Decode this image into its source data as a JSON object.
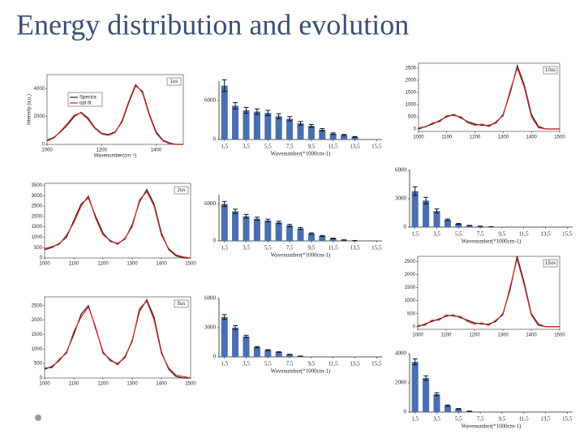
{
  "title": "Energy distribution and evolution",
  "chart_data": [
    {
      "type": "line",
      "tag": "1us",
      "ylabel": "Intensity (a.u.)",
      "xlabel": "Wavenumber(cm⁻¹)",
      "x": [
        1000,
        1025,
        1050,
        1075,
        1100,
        1125,
        1150,
        1175,
        1200,
        1225,
        1250,
        1275,
        1300,
        1325,
        1350,
        1375,
        1400,
        1425,
        1450,
        1475,
        1500
      ],
      "xlim": [
        1000,
        1500
      ],
      "ylim": [
        0,
        5000
      ],
      "xticks": [
        1000,
        1200,
        1400
      ],
      "yticks": [
        0,
        2000,
        4000
      ],
      "series": [
        {
          "name": "Spectra",
          "color": "#222222",
          "values": [
            300,
            500,
            900,
            1400,
            2000,
            2300,
            1900,
            1200,
            800,
            700,
            900,
            1600,
            3000,
            4200,
            3800,
            2200,
            900,
            300,
            100,
            0,
            0
          ]
        },
        {
          "name": "opt fit",
          "color": "#d42a2a",
          "values": [
            250,
            450,
            950,
            1500,
            2100,
            2250,
            1800,
            1150,
            750,
            650,
            850,
            1700,
            3100,
            4300,
            3700,
            2100,
            800,
            250,
            50,
            0,
            0
          ]
        }
      ]
    },
    {
      "type": "line",
      "tag": "10us",
      "x": [
        1000,
        1025,
        1050,
        1075,
        1100,
        1125,
        1150,
        1175,
        1200,
        1225,
        1250,
        1275,
        1300,
        1325,
        1350,
        1375,
        1400,
        1425,
        1450,
        1475,
        1500
      ],
      "xlim": [
        1000,
        1500
      ],
      "ylim": [
        -100,
        2700
      ],
      "xticks": [
        1000,
        1100,
        1200,
        1300,
        1400,
        1500
      ],
      "yticks": [
        0,
        500,
        1000,
        1500,
        2000,
        2500
      ],
      "series": [
        {
          "name": "Spectra",
          "color": "#222222",
          "values": [
            0,
            100,
            200,
            350,
            500,
            600,
            450,
            300,
            200,
            150,
            150,
            250,
            600,
            1500,
            2600,
            1800,
            600,
            100,
            0,
            0,
            0
          ]
        },
        {
          "name": "opt fit",
          "color": "#d42a2a",
          "values": [
            50,
            80,
            250,
            300,
            550,
            550,
            500,
            250,
            150,
            200,
            100,
            300,
            550,
            1600,
            2500,
            1700,
            500,
            50,
            0,
            0,
            0
          ]
        }
      ]
    },
    {
      "type": "line",
      "tag": "2us",
      "x": [
        1000,
        1025,
        1050,
        1075,
        1100,
        1125,
        1150,
        1175,
        1200,
        1225,
        1250,
        1275,
        1300,
        1325,
        1350,
        1375,
        1400,
        1425,
        1450,
        1475,
        1500
      ],
      "xlim": [
        1000,
        1500
      ],
      "ylim": [
        0,
        3600
      ],
      "xticks": [
        1000,
        1100,
        1200,
        1300,
        1400,
        1500
      ],
      "yticks": [
        0,
        500,
        1000,
        1500,
        2000,
        2500,
        3000,
        3500
      ],
      "series": [
        {
          "name": "Spectra",
          "color": "#222222",
          "values": [
            400,
            500,
            700,
            1000,
            1800,
            2600,
            2900,
            2000,
            1200,
            800,
            700,
            900,
            1600,
            2700,
            3300,
            2600,
            1200,
            400,
            100,
            0,
            0
          ]
        },
        {
          "name": "opt fit",
          "color": "#d42a2a",
          "values": [
            450,
            550,
            650,
            1100,
            1700,
            2500,
            3000,
            1900,
            1100,
            850,
            650,
            950,
            1500,
            2800,
            3200,
            2500,
            1100,
            450,
            150,
            50,
            0
          ]
        }
      ]
    },
    {
      "type": "line",
      "tag": "5us",
      "x": [
        1000,
        1025,
        1050,
        1075,
        1100,
        1125,
        1150,
        1175,
        1200,
        1225,
        1250,
        1275,
        1300,
        1325,
        1350,
        1375,
        1400,
        1425,
        1450,
        1475,
        1500
      ],
      "xlim": [
        1000,
        1500
      ],
      "ylim": [
        0,
        2800
      ],
      "xticks": [
        1000,
        1100,
        1200,
        1300,
        1400,
        1500
      ],
      "yticks": [
        0,
        500,
        1000,
        1500,
        2000,
        2500
      ],
      "series": [
        {
          "name": "Spectra",
          "color": "#222222",
          "values": [
            300,
            400,
            600,
            900,
            1500,
            2200,
            2500,
            1700,
            900,
            600,
            500,
            700,
            1300,
            2300,
            2700,
            2100,
            900,
            300,
            50,
            0,
            0
          ]
        },
        {
          "name": "opt fit",
          "color": "#d42a2a",
          "values": [
            350,
            350,
            650,
            850,
            1600,
            2100,
            2450,
            1750,
            850,
            650,
            450,
            750,
            1250,
            2400,
            2650,
            2000,
            850,
            350,
            100,
            50,
            0
          ]
        }
      ]
    },
    {
      "type": "line",
      "tag": "15us",
      "x": [
        1000,
        1025,
        1050,
        1075,
        1100,
        1125,
        1150,
        1175,
        1200,
        1225,
        1250,
        1275,
        1300,
        1325,
        1350,
        1375,
        1400,
        1425,
        1450,
        1475,
        1500
      ],
      "xlim": [
        1000,
        1500
      ],
      "ylim": [
        -100,
        2700
      ],
      "xticks": [
        1000,
        1100,
        1200,
        1300,
        1400,
        1500
      ],
      "yticks": [
        0,
        500,
        1000,
        1500,
        2000,
        2500
      ],
      "series": [
        {
          "name": "Spectra",
          "color": "#222222",
          "values": [
            0,
            100,
            200,
            300,
            400,
            450,
            350,
            250,
            150,
            100,
            100,
            200,
            500,
            1400,
            2700,
            1700,
            500,
            100,
            0,
            0,
            0
          ]
        },
        {
          "name": "opt fit",
          "color": "#d42a2a",
          "values": [
            50,
            50,
            250,
            250,
            450,
            400,
            400,
            200,
            100,
            150,
            50,
            250,
            450,
            1500,
            2600,
            1600,
            450,
            50,
            0,
            0,
            0
          ]
        }
      ]
    },
    {
      "type": "bar",
      "xlabel": "Wavenumber(*1000cm-1)",
      "color": "#4a6fb0",
      "x": [
        1.5,
        2.5,
        3.5,
        4.5,
        5.5,
        6.5,
        7.5,
        8.5,
        9.5,
        10.5,
        11.5,
        12.5,
        13.5
      ],
      "values": [
        8300,
        5200,
        4500,
        4300,
        4100,
        3600,
        3200,
        2500,
        2100,
        1500,
        900,
        700,
        400
      ],
      "errors": [
        900,
        500,
        450,
        420,
        400,
        380,
        330,
        280,
        230,
        180,
        120,
        90,
        60
      ],
      "xlim": [
        1,
        16
      ],
      "ylim": [
        0,
        9000
      ],
      "yticks": [
        0,
        6000
      ],
      "xticks": [
        {
          "value": 1.5,
          "label": "1,5"
        },
        {
          "value": 3.5,
          "label": "3,5"
        },
        {
          "value": 5.5,
          "label": "5,5"
        },
        {
          "value": 7.5,
          "label": "7,5"
        },
        {
          "value": 9.5,
          "label": "9,5"
        },
        {
          "value": 11.5,
          "label": "11,5"
        },
        {
          "value": 13.5,
          "label": "13,5"
        },
        {
          "value": 15.5,
          "label": "15,5"
        }
      ]
    },
    {
      "type": "bar",
      "xlabel": "Wavenumber(*1000cm-1)",
      "color": "#4a6fb0",
      "x": [
        1.5,
        2.5,
        3.5,
        4.5,
        5.5,
        6.5,
        7.5,
        8.5,
        9.5,
        10.5,
        11.5,
        12.5,
        13.5
      ],
      "values": [
        6000,
        4800,
        4000,
        3600,
        3300,
        3000,
        2500,
        2000,
        1200,
        800,
        400,
        150,
        50
      ],
      "errors": [
        400,
        350,
        300,
        250,
        230,
        200,
        180,
        150,
        100,
        80,
        50,
        30,
        20
      ],
      "xlim": [
        1,
        16
      ],
      "ylim": [
        0,
        7500
      ],
      "yticks": [
        0,
        6000
      ],
      "xticks": [
        {
          "value": 1.5,
          "label": "1,5"
        },
        {
          "value": 3.5,
          "label": "3,5"
        },
        {
          "value": 5.5,
          "label": "5,5"
        },
        {
          "value": 7.5,
          "label": "7,5"
        },
        {
          "value": 9.5,
          "label": "9,5"
        },
        {
          "value": 11.5,
          "label": "11,5"
        },
        {
          "value": 13.5,
          "label": "13,5"
        },
        {
          "value": 15.5,
          "label": "15,5"
        }
      ]
    },
    {
      "type": "bar",
      "xlabel": "Wavenumber(*1000cm-1)",
      "color": "#4a6fb0",
      "x": [
        1.5,
        2.5,
        3.5,
        4.5,
        5.5,
        6.5,
        7.5,
        8.5
      ],
      "values": [
        3800,
        2800,
        1700,
        780,
        340,
        170,
        90,
        40
      ],
      "errors": [
        450,
        350,
        220,
        80,
        40,
        20,
        10,
        5
      ],
      "xlim": [
        1,
        16
      ],
      "ylim": [
        0,
        6000
      ],
      "yticks": [
        0,
        3000,
        6000
      ],
      "xticks": [
        {
          "value": 1.5,
          "label": "1,5"
        },
        {
          "value": 3.5,
          "label": "3,5"
        },
        {
          "value": 5.5,
          "label": "5,5"
        },
        {
          "value": 7.5,
          "label": "7,5"
        },
        {
          "value": 9.5,
          "label": "9,5"
        },
        {
          "value": 11.5,
          "label": "11,5"
        },
        {
          "value": 13.5,
          "label": "13,5"
        },
        {
          "value": 15.5,
          "label": "15,5"
        }
      ]
    },
    {
      "type": "bar",
      "xlabel": "Wavenumber(*1000cm-1)",
      "color": "#4a6fb0",
      "x": [
        1.5,
        2.5,
        3.5,
        4.5,
        5.5,
        6.5,
        7.5,
        8.5
      ],
      "values": [
        4100,
        3000,
        2100,
        1000,
        700,
        500,
        250,
        80
      ],
      "errors": [
        250,
        200,
        120,
        60,
        40,
        30,
        20,
        10
      ],
      "xlim": [
        1,
        16
      ],
      "ylim": [
        0,
        6000
      ],
      "yticks": [
        0,
        3000,
        6000
      ],
      "xticks": [
        {
          "value": 1.5,
          "label": "1,5"
        },
        {
          "value": 3.5,
          "label": "3,5"
        },
        {
          "value": 5.5,
          "label": "5,5"
        },
        {
          "value": 7.5,
          "label": "7,5"
        },
        {
          "value": 9.5,
          "label": "9,5"
        },
        {
          "value": 11.5,
          "label": "11,5"
        },
        {
          "value": 13.5,
          "label": "13,5"
        },
        {
          "value": 15.5,
          "label": "15,5"
        }
      ]
    },
    {
      "type": "bar",
      "xlabel": "Wavenumber(*1000cm-1)",
      "color": "#4a6fb0",
      "x": [
        1.5,
        2.5,
        3.5,
        4.5,
        5.5,
        6.5
      ],
      "values": [
        3440,
        2330,
        1220,
        440,
        220,
        60
      ],
      "errors": [
        200,
        150,
        100,
        40,
        20,
        10
      ],
      "xlim": [
        1,
        16
      ],
      "ylim": [
        0,
        4000
      ],
      "yticks": [
        0,
        2000,
        4000
      ],
      "xticks": [
        {
          "value": 1.5,
          "label": "1,5"
        },
        {
          "value": 3.5,
          "label": "3,5"
        },
        {
          "value": 5.5,
          "label": "5,5"
        },
        {
          "value": 7.5,
          "label": "7,5"
        },
        {
          "value": 9.5,
          "label": "9,5"
        },
        {
          "value": 11.5,
          "label": "11,5"
        },
        {
          "value": 13.5,
          "label": "13,5"
        },
        {
          "value": 15.5,
          "label": "15,5"
        }
      ]
    }
  ]
}
